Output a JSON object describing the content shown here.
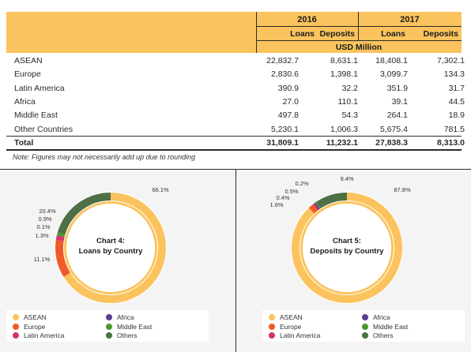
{
  "table": {
    "years": [
      "2016",
      "2017"
    ],
    "columns": [
      "Loans",
      "Deposits",
      "Loans",
      "Deposits"
    ],
    "unit": "USD Million",
    "rows": [
      {
        "label": "ASEAN",
        "values": [
          "22,832.7",
          "8,631.1",
          "18,408.1",
          "7,302.1"
        ]
      },
      {
        "label": "Europe",
        "values": [
          "2,830.6",
          "1,398.1",
          "3,099.7",
          "134.3"
        ]
      },
      {
        "label": "Latin America",
        "values": [
          "390.9",
          "32.2",
          "351.9",
          "31.7"
        ]
      },
      {
        "label": "Africa",
        "values": [
          "27.0",
          "110.1",
          "39.1",
          "44.5"
        ]
      },
      {
        "label": "Middle East",
        "values": [
          "497.8",
          "54.3",
          "264.1",
          "18.9"
        ]
      },
      {
        "label": "Other Countries",
        "values": [
          "5,230.1",
          "1,006.3",
          "5,675.4",
          "781.5"
        ]
      }
    ],
    "total": {
      "label": "Total",
      "values": [
        "31,809.1",
        "11,232.1",
        "27,838.3",
        "8,313.0"
      ]
    },
    "note": "Note: Figures may not necessarily add up due to rounding"
  },
  "chart_data": [
    {
      "type": "pie",
      "title": "Chart 4:",
      "subtitle": "Loans by Country",
      "slices": [
        {
          "name": "ASEAN",
          "value": 66.1,
          "label": "66.1%",
          "color": "#fbc35d"
        },
        {
          "name": "Europe",
          "value": 11.1,
          "label": "11.1%",
          "color": "#f05a28"
        },
        {
          "name": "Latin America",
          "value": 1.3,
          "label": "1.3%",
          "color": "#d6336c"
        },
        {
          "name": "Africa",
          "value": 0.1,
          "label": "0.1%",
          "color": "#5b3f8c"
        },
        {
          "name": "Middle East",
          "value": 0.9,
          "label": "0.9%",
          "color": "#4c9a2a"
        },
        {
          "name": "Others",
          "value": 20.4,
          "label": "20.4%",
          "color": "#4f6f45"
        }
      ]
    },
    {
      "type": "pie",
      "title": "Chart 5:",
      "subtitle": "Deposits by Country",
      "slices": [
        {
          "name": "ASEAN",
          "value": 87.8,
          "label": "87.8%",
          "color": "#fbc35d"
        },
        {
          "name": "Europe",
          "value": 1.6,
          "label": "1.6%",
          "color": "#f05a28"
        },
        {
          "name": "Latin America",
          "value": 0.4,
          "label": "0.4%",
          "color": "#d6336c"
        },
        {
          "name": "Africa",
          "value": 0.5,
          "label": "0.5%",
          "color": "#5b3f8c"
        },
        {
          "name": "Middle East",
          "value": 0.2,
          "label": "0.2%",
          "color": "#4c9a2a"
        },
        {
          "name": "Others",
          "value": 9.4,
          "label": "9.4%",
          "color": "#4f6f45"
        }
      ]
    }
  ],
  "legend": [
    {
      "name": "ASEAN",
      "color": "#fbc35d"
    },
    {
      "name": "Africa",
      "color": "#5b3f8c"
    },
    {
      "name": "Europe",
      "color": "#f05a28"
    },
    {
      "name": "Middle East",
      "color": "#4c9a2a"
    },
    {
      "name": "Latin America",
      "color": "#d6336c"
    },
    {
      "name": "Others",
      "color": "#4f6f45"
    }
  ]
}
